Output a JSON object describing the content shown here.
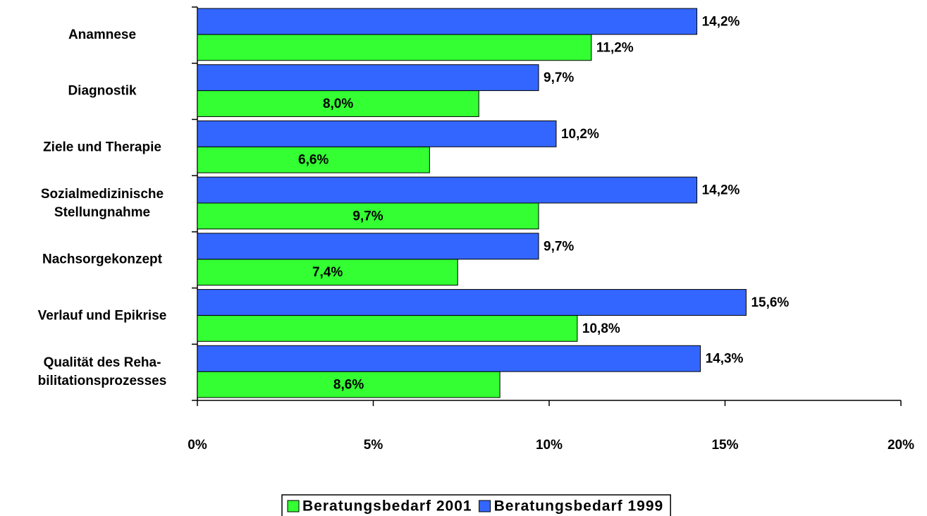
{
  "chart_data": {
    "type": "bar",
    "orientation": "horizontal",
    "categories": [
      "Anamnese",
      "Diagnostik",
      "Ziele und Therapie",
      "Sozialmedizinische\nStellungnahme",
      "Nachsorgekonzept",
      "Verlauf und Epikrise",
      "Qualität des Reha-\nbilitationsprozesses"
    ],
    "series": [
      {
        "name": "Beratungsbedarf 2001",
        "color": "#33ff33",
        "values": [
          11.2,
          8.0,
          6.6,
          9.7,
          7.4,
          10.8,
          8.6
        ],
        "value_labels": [
          "11,2%",
          "8,0%",
          "6,6%",
          "9,7%",
          "7,4%",
          "10,8%",
          "8,6%"
        ]
      },
      {
        "name": "Beratungsbedarf 1999",
        "color": "#3366ff",
        "values": [
          14.2,
          9.7,
          10.2,
          14.2,
          9.7,
          15.6,
          14.3
        ],
        "value_labels": [
          "14,2%",
          "9,7%",
          "10,2%",
          "14,2%",
          "9,7%",
          "15,6%",
          "14,3%"
        ]
      }
    ],
    "xlim": [
      0,
      20
    ],
    "xticks": [
      {
        "value": 0,
        "label": "0%"
      },
      {
        "value": 5,
        "label": "5%"
      },
      {
        "value": 10,
        "label": "10%"
      },
      {
        "value": 15,
        "label": "15%"
      },
      {
        "value": 20,
        "label": "20%"
      }
    ],
    "grid": false,
    "legend": "bottom"
  }
}
